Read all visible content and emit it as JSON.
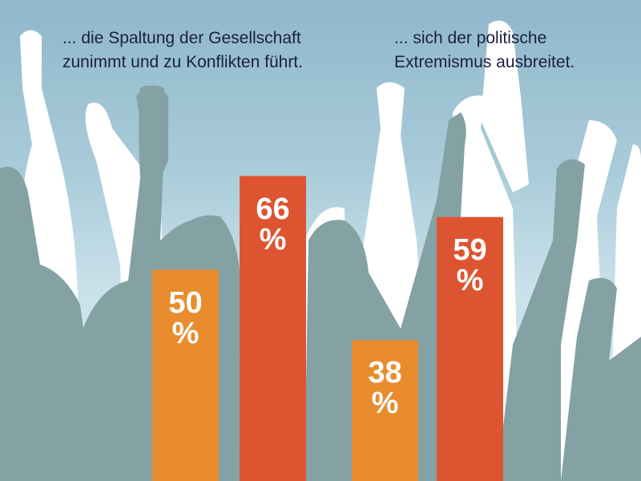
{
  "captions": [
    "... die Spaltung der Gesellschaft\nzunimmt und zu Konflikten führt.",
    "... sich der politische\nExtremismus ausbreitet."
  ],
  "colors": {
    "orange": "#E98C2E",
    "red": "#DD5530",
    "silhouette": "#84A1A3",
    "silhouette_light": "#ffffff",
    "text": "#1b2040"
  },
  "chart_data": {
    "type": "bar",
    "categories": [
      "... die Spaltung der Gesellschaft zunimmt und zu Konflikten führt.",
      "... sich der politische Extremismus ausbreitet."
    ],
    "series": [
      {
        "values": [
          50,
          38
        ],
        "color": "#E98C2E"
      },
      {
        "values": [
          66,
          59
        ],
        "color": "#DD5530"
      }
    ],
    "labels": [
      "50\n%",
      "66\n%",
      "38\n%",
      "59\n%"
    ],
    "unit": "%",
    "ylim": [
      14,
      96
    ],
    "grid": false,
    "background": "crowd-silhouette-raised-fists"
  }
}
